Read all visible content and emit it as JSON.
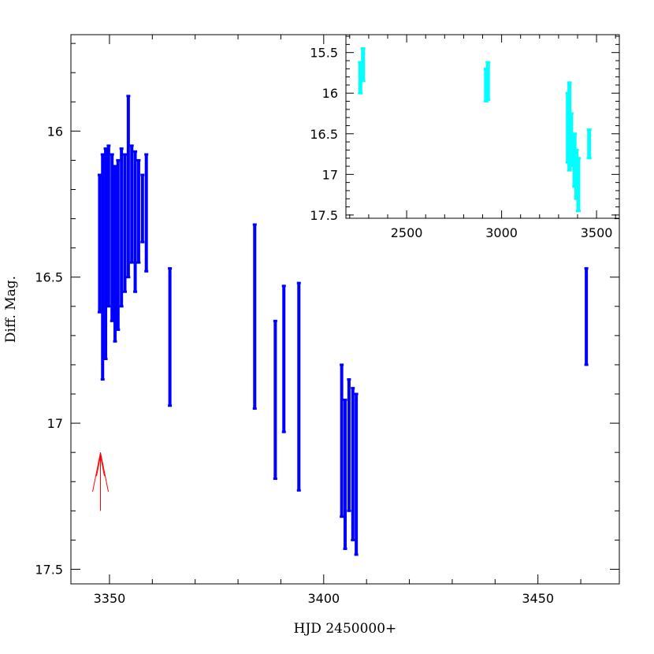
{
  "chart_data": [
    {
      "type": "scatter",
      "panel": "main",
      "xlabel": "HJD 2450000+",
      "ylabel": "Diff. Mag.",
      "xlim": [
        3341,
        3469
      ],
      "ylim": [
        17.55,
        15.67
      ],
      "y_inverted": true,
      "x_ticks": [
        3350,
        3400,
        3450
      ],
      "y_ticks": [
        16,
        16.5,
        17,
        17.5
      ],
      "marker_color": "#0000ff",
      "grid": false,
      "segments": [
        {
          "x": 3347.7,
          "ymin": 16.15,
          "ymax": 16.62
        },
        {
          "x": 3348.4,
          "ymin": 16.08,
          "ymax": 16.85
        },
        {
          "x": 3349.1,
          "ymin": 16.06,
          "ymax": 16.78
        },
        {
          "x": 3349.8,
          "ymin": 16.05,
          "ymax": 16.6
        },
        {
          "x": 3350.6,
          "ymin": 16.08,
          "ymax": 16.65
        },
        {
          "x": 3351.3,
          "ymin": 16.12,
          "ymax": 16.72
        },
        {
          "x": 3352.0,
          "ymin": 16.1,
          "ymax": 16.68
        },
        {
          "x": 3352.8,
          "ymin": 16.06,
          "ymax": 16.6
        },
        {
          "x": 3353.6,
          "ymin": 16.08,
          "ymax": 16.55
        },
        {
          "x": 3354.4,
          "ymin": 15.88,
          "ymax": 16.5
        },
        {
          "x": 3355.2,
          "ymin": 16.05,
          "ymax": 16.45
        },
        {
          "x": 3356.0,
          "ymin": 16.07,
          "ymax": 16.55
        },
        {
          "x": 3356.8,
          "ymin": 16.1,
          "ymax": 16.45
        },
        {
          "x": 3357.7,
          "ymin": 16.15,
          "ymax": 16.38
        },
        {
          "x": 3358.6,
          "ymin": 16.08,
          "ymax": 16.48
        },
        {
          "x": 3364.1,
          "ymin": 16.47,
          "ymax": 16.94
        },
        {
          "x": 3383.9,
          "ymin": 16.32,
          "ymax": 16.95
        },
        {
          "x": 3388.7,
          "ymin": 16.65,
          "ymax": 17.19
        },
        {
          "x": 3390.7,
          "ymin": 16.53,
          "ymax": 17.03
        },
        {
          "x": 3394.2,
          "ymin": 16.52,
          "ymax": 17.23
        },
        {
          "x": 3404.2,
          "ymin": 16.8,
          "ymax": 17.32
        },
        {
          "x": 3405.0,
          "ymin": 16.92,
          "ymax": 17.43
        },
        {
          "x": 3405.9,
          "ymin": 16.85,
          "ymax": 17.3
        },
        {
          "x": 3406.8,
          "ymin": 16.88,
          "ymax": 17.4
        },
        {
          "x": 3407.6,
          "ymin": 16.9,
          "ymax": 17.45
        },
        {
          "x": 3461.3,
          "ymin": 16.47,
          "ymax": 16.8
        }
      ],
      "annotation": {
        "type": "arrow",
        "color": "#ff0000",
        "x": 3347.9,
        "y_tail": 17.3,
        "y_head": 17.1
      }
    },
    {
      "type": "scatter",
      "panel": "inset",
      "xlim": [
        2180,
        3620
      ],
      "ylim": [
        17.54,
        15.28
      ],
      "y_inverted": true,
      "x_ticks": [
        2500,
        3000,
        3500
      ],
      "y_ticks": [
        15.5,
        16,
        16.5,
        17,
        17.5
      ],
      "marker_color": "#00ffff",
      "grid": false,
      "segments": [
        {
          "x": 2256,
          "ymin": 15.62,
          "ymax": 16.0
        },
        {
          "x": 2270,
          "ymin": 15.45,
          "ymax": 15.85
        },
        {
          "x": 2918,
          "ymin": 15.7,
          "ymax": 16.1
        },
        {
          "x": 2928,
          "ymin": 15.62,
          "ymax": 16.08
        },
        {
          "x": 3349,
          "ymin": 16.0,
          "ymax": 16.85
        },
        {
          "x": 3357,
          "ymin": 15.87,
          "ymax": 16.95
        },
        {
          "x": 3366,
          "ymin": 16.25,
          "ymax": 16.9
        },
        {
          "x": 3384,
          "ymin": 16.5,
          "ymax": 17.15
        },
        {
          "x": 3394,
          "ymin": 16.7,
          "ymax": 17.3
        },
        {
          "x": 3404,
          "ymin": 16.8,
          "ymax": 17.45
        },
        {
          "x": 3461,
          "ymin": 16.45,
          "ymax": 16.8
        }
      ]
    }
  ]
}
